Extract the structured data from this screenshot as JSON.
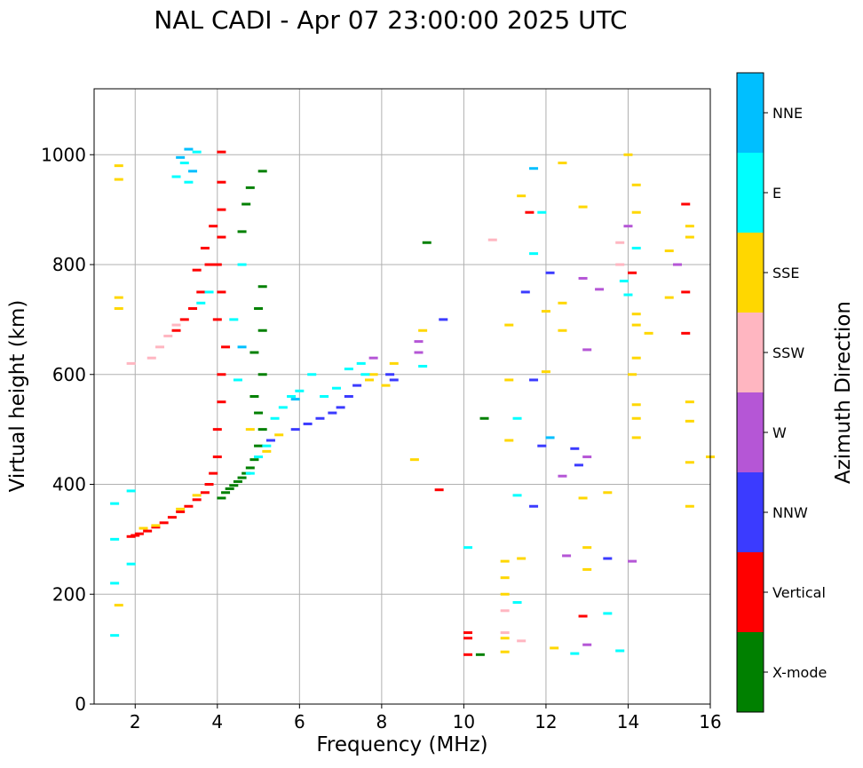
{
  "chart_data": {
    "type": "scatter",
    "title": "NAL CADI - Apr 07 23:00:00 2025 UTC",
    "xlabel": "Frequency (MHz)",
    "ylabel": "Virtual height (km)",
    "xlim": [
      1,
      16
    ],
    "ylim": [
      0,
      1120
    ],
    "xticks": [
      2,
      4,
      6,
      8,
      10,
      12,
      14,
      16
    ],
    "yticks": [
      0,
      200,
      400,
      600,
      800,
      1000
    ],
    "grid": true,
    "colorbar": {
      "label": "Azimuth Direction",
      "categories": [
        {
          "name": "X-mode",
          "color": "#008000"
        },
        {
          "name": "Vertical",
          "color": "#ff0000"
        },
        {
          "name": "NNW",
          "color": "#3b3bff"
        },
        {
          "name": "W",
          "color": "#b556d6"
        },
        {
          "name": "SSW",
          "color": "#ffb6c1"
        },
        {
          "name": "SSE",
          "color": "#ffd700"
        },
        {
          "name": "E",
          "color": "#00ffff"
        },
        {
          "name": "NNE",
          "color": "#00bfff"
        }
      ]
    },
    "series": [
      {
        "name": "X-mode",
        "points": [
          [
            4.1,
            375
          ],
          [
            4.2,
            385
          ],
          [
            4.3,
            392
          ],
          [
            4.4,
            398
          ],
          [
            4.5,
            405
          ],
          [
            4.6,
            412
          ],
          [
            4.7,
            420
          ],
          [
            4.8,
            430
          ],
          [
            4.9,
            445
          ],
          [
            5.0,
            470
          ],
          [
            5.1,
            500
          ],
          [
            5.0,
            530
          ],
          [
            4.9,
            560
          ],
          [
            5.1,
            600
          ],
          [
            4.9,
            640
          ],
          [
            5.1,
            680
          ],
          [
            5.0,
            720
          ],
          [
            5.1,
            760
          ],
          [
            4.6,
            860
          ],
          [
            4.7,
            910
          ],
          [
            4.8,
            940
          ],
          [
            5.1,
            970
          ],
          [
            10.4,
            90
          ],
          [
            10.5,
            520
          ],
          [
            9.1,
            840
          ]
        ]
      },
      {
        "name": "Vertical",
        "points": [
          [
            1.9,
            305
          ],
          [
            2.0,
            307
          ],
          [
            2.1,
            310
          ],
          [
            2.3,
            315
          ],
          [
            2.5,
            322
          ],
          [
            2.7,
            330
          ],
          [
            2.9,
            340
          ],
          [
            3.1,
            350
          ],
          [
            3.3,
            360
          ],
          [
            3.5,
            372
          ],
          [
            3.7,
            385
          ],
          [
            3.8,
            400
          ],
          [
            3.9,
            420
          ],
          [
            4.0,
            450
          ],
          [
            4.0,
            500
          ],
          [
            4.1,
            550
          ],
          [
            4.1,
            600
          ],
          [
            4.2,
            650
          ],
          [
            4.0,
            700
          ],
          [
            4.1,
            750
          ],
          [
            4.0,
            800
          ],
          [
            4.1,
            850
          ],
          [
            4.1,
            900
          ],
          [
            4.1,
            950
          ],
          [
            4.1,
            1005
          ],
          [
            3.0,
            680
          ],
          [
            3.2,
            700
          ],
          [
            3.4,
            720
          ],
          [
            3.6,
            750
          ],
          [
            3.8,
            800
          ],
          [
            3.7,
            830
          ],
          [
            3.9,
            870
          ],
          [
            3.5,
            790
          ],
          [
            10.1,
            90
          ],
          [
            10.1,
            120
          ],
          [
            10.1,
            130
          ],
          [
            9.4,
            390
          ],
          [
            14.1,
            785
          ],
          [
            15.4,
            675
          ],
          [
            15.4,
            750
          ],
          [
            15.4,
            910
          ],
          [
            12.9,
            160
          ],
          [
            11.6,
            895
          ]
        ]
      },
      {
        "name": "NNW",
        "points": [
          [
            5.9,
            500
          ],
          [
            6.2,
            510
          ],
          [
            6.5,
            520
          ],
          [
            6.8,
            530
          ],
          [
            7.0,
            540
          ],
          [
            7.2,
            560
          ],
          [
            7.4,
            580
          ],
          [
            8.2,
            600
          ],
          [
            8.3,
            590
          ],
          [
            9.5,
            700
          ],
          [
            11.7,
            360
          ],
          [
            11.7,
            590
          ],
          [
            12.1,
            785
          ],
          [
            12.7,
            465
          ],
          [
            11.9,
            470
          ],
          [
            11.5,
            750
          ],
          [
            12.8,
            435
          ],
          [
            13.5,
            265
          ],
          [
            5.3,
            480
          ]
        ]
      },
      {
        "name": "W",
        "points": [
          [
            8.9,
            640
          ],
          [
            8.9,
            660
          ],
          [
            12.5,
            270
          ],
          [
            13.0,
            450
          ],
          [
            13.0,
            645
          ],
          [
            13.3,
            755
          ],
          [
            12.9,
            775
          ],
          [
            14.1,
            260
          ],
          [
            14.0,
            870
          ],
          [
            15.2,
            800
          ],
          [
            12.4,
            415
          ],
          [
            7.8,
            630
          ],
          [
            13.0,
            108
          ]
        ]
      },
      {
        "name": "SSW",
        "points": [
          [
            2.4,
            630
          ],
          [
            2.6,
            650
          ],
          [
            2.8,
            670
          ],
          [
            3.0,
            690
          ],
          [
            10.7,
            845
          ],
          [
            13.8,
            840
          ],
          [
            13.8,
            800
          ],
          [
            11.0,
            130
          ],
          [
            11.0,
            170
          ],
          [
            11.4,
            115
          ],
          [
            1.9,
            620
          ]
        ]
      },
      {
        "name": "SSE",
        "points": [
          [
            1.6,
            955
          ],
          [
            1.6,
            980
          ],
          [
            1.6,
            720
          ],
          [
            1.6,
            740
          ],
          [
            1.6,
            180
          ],
          [
            2.2,
            320
          ],
          [
            2.5,
            325
          ],
          [
            3.1,
            355
          ],
          [
            3.5,
            380
          ],
          [
            4.8,
            500
          ],
          [
            5.2,
            460
          ],
          [
            5.5,
            490
          ],
          [
            7.7,
            590
          ],
          [
            7.8,
            600
          ],
          [
            8.1,
            580
          ],
          [
            8.3,
            620
          ],
          [
            8.8,
            445
          ],
          [
            9.0,
            680
          ],
          [
            11.0,
            200
          ],
          [
            11.0,
            230
          ],
          [
            11.0,
            260
          ],
          [
            11.0,
            120
          ],
          [
            11.0,
            95
          ],
          [
            11.1,
            590
          ],
          [
            11.1,
            690
          ],
          [
            11.1,
            480
          ],
          [
            11.4,
            925
          ],
          [
            11.4,
            265
          ],
          [
            12.0,
            605
          ],
          [
            12.0,
            715
          ],
          [
            12.4,
            730
          ],
          [
            12.4,
            985
          ],
          [
            12.4,
            680
          ],
          [
            12.9,
            905
          ],
          [
            12.9,
            375
          ],
          [
            13.0,
            285
          ],
          [
            13.0,
            245
          ],
          [
            13.5,
            385
          ],
          [
            14.0,
            1000
          ],
          [
            14.2,
            895
          ],
          [
            14.2,
            945
          ],
          [
            14.2,
            710
          ],
          [
            14.2,
            690
          ],
          [
            14.2,
            630
          ],
          [
            14.1,
            600
          ],
          [
            14.2,
            545
          ],
          [
            14.2,
            520
          ],
          [
            14.2,
            485
          ],
          [
            14.5,
            675
          ],
          [
            15.0,
            825
          ],
          [
            15.0,
            740
          ],
          [
            15.5,
            870
          ],
          [
            15.5,
            850
          ],
          [
            15.5,
            550
          ],
          [
            15.5,
            515
          ],
          [
            15.5,
            440
          ],
          [
            15.5,
            360
          ],
          [
            16.0,
            450
          ],
          [
            12.2,
            102
          ]
        ]
      },
      {
        "name": "E",
        "points": [
          [
            1.5,
            300
          ],
          [
            1.5,
            365
          ],
          [
            1.5,
            220
          ],
          [
            1.5,
            125
          ],
          [
            1.9,
            255
          ],
          [
            1.9,
            388
          ],
          [
            3.0,
            960
          ],
          [
            3.2,
            985
          ],
          [
            3.5,
            1005
          ],
          [
            3.6,
            730
          ],
          [
            3.8,
            750
          ],
          [
            4.8,
            420
          ],
          [
            5.0,
            450
          ],
          [
            5.2,
            470
          ],
          [
            5.4,
            520
          ],
          [
            5.6,
            540
          ],
          [
            5.8,
            560
          ],
          [
            6.0,
            570
          ],
          [
            6.3,
            600
          ],
          [
            6.6,
            560
          ],
          [
            6.9,
            575
          ],
          [
            7.2,
            610
          ],
          [
            7.5,
            620
          ],
          [
            7.6,
            600
          ],
          [
            4.4,
            700
          ],
          [
            4.6,
            800
          ],
          [
            9.0,
            615
          ],
          [
            10.1,
            285
          ],
          [
            11.3,
            520
          ],
          [
            11.3,
            380
          ],
          [
            11.3,
            185
          ],
          [
            11.7,
            820
          ],
          [
            11.9,
            895
          ],
          [
            12.7,
            92
          ],
          [
            13.5,
            165
          ],
          [
            13.8,
            97
          ],
          [
            13.9,
            770
          ],
          [
            14.2,
            830
          ],
          [
            14.0,
            745
          ],
          [
            3.3,
            950
          ],
          [
            4.5,
            590
          ]
        ]
      },
      {
        "name": "NNE",
        "points": [
          [
            3.1,
            995
          ],
          [
            3.4,
            970
          ],
          [
            3.3,
            1010
          ],
          [
            11.7,
            975
          ],
          [
            12.1,
            485
          ],
          [
            5.9,
            555
          ],
          [
            4.6,
            650
          ]
        ]
      }
    ]
  }
}
